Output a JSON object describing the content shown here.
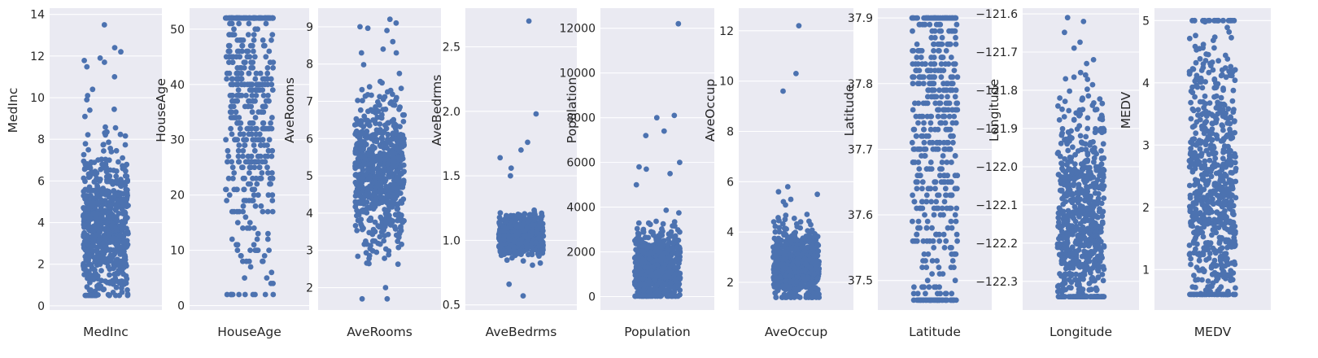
{
  "style": {
    "face_color": "#eaeaf2",
    "grid_color": "#ffffff",
    "point_color": "#4c72b0",
    "text_color": "#262626"
  },
  "chart_data": [
    {
      "type": "scatter",
      "subtype": "strip",
      "category": "MedInc",
      "xlabel": "MedInc",
      "ylabel": "MedInc",
      "ylim": [
        -0.2,
        14.3
      ],
      "yticks": [
        0,
        2,
        4,
        6,
        8,
        10,
        12,
        14
      ],
      "tick_labels": [
        "0",
        "2",
        "4",
        "6",
        "8",
        "10",
        "12",
        "14"
      ],
      "grid": true,
      "n_points": 700,
      "distribution": {
        "min": 0.5,
        "max": 13.5,
        "median": 3.7,
        "q1": 2.6,
        "q3": 5.0
      },
      "outliers": [
        13.5,
        12.4,
        12.2,
        11.9,
        11.7,
        11.0,
        10.4,
        10.1,
        9.9,
        9.4
      ]
    },
    {
      "type": "scatter",
      "subtype": "strip",
      "category": "HouseAge",
      "xlabel": "HouseAge",
      "ylabel": "HouseAge",
      "ylim": [
        -0.8,
        53.8
      ],
      "yticks": [
        0,
        10,
        20,
        30,
        40,
        50
      ],
      "tick_labels": [
        "0",
        "10",
        "20",
        "30",
        "40",
        "50"
      ],
      "grid": true,
      "n_points": 450,
      "integer_values": true,
      "distribution": {
        "min": 2,
        "max": 52,
        "median": 37,
        "q1": 25,
        "q3": 47
      },
      "outliers": [
        52,
        52,
        52,
        52,
        52,
        52,
        52,
        52,
        52,
        52,
        52,
        52
      ]
    },
    {
      "type": "scatter",
      "subtype": "strip",
      "category": "AveRooms",
      "xlabel": "AveRooms",
      "ylabel": "AveRooms",
      "ylim": [
        1.4,
        9.5
      ],
      "yticks": [
        2,
        3,
        4,
        5,
        6,
        7,
        8,
        9
      ],
      "tick_labels": [
        "2",
        "3",
        "4",
        "5",
        "6",
        "7",
        "8",
        "9"
      ],
      "grid": true,
      "n_points": 700,
      "distribution": {
        "min": 1.7,
        "max": 9.2,
        "median": 5.0,
        "q1": 4.4,
        "q3": 5.7
      },
      "outliers": [
        9.2,
        9.1,
        9.0,
        8.9,
        8.6,
        8.4,
        8.3,
        8.3,
        2.0,
        1.7
      ]
    },
    {
      "type": "scatter",
      "subtype": "strip",
      "category": "AveBedrms",
      "xlabel": "AveBedrms",
      "ylabel": "AveBedrms",
      "ylim": [
        0.46,
        2.8
      ],
      "yticks": [
        0.5,
        1.0,
        1.5,
        2.0,
        2.5
      ],
      "tick_labels": [
        "0.5",
        "1.0",
        "1.5",
        "2.0",
        "2.5"
      ],
      "grid": true,
      "n_points": 650,
      "distribution": {
        "min": 0.57,
        "max": 2.7,
        "median": 1.04,
        "q1": 0.99,
        "q3": 1.09
      },
      "outliers": [
        2.7,
        1.98,
        1.76,
        1.7,
        1.64,
        1.56,
        1.5,
        0.66,
        0.57
      ]
    },
    {
      "type": "scatter",
      "subtype": "strip",
      "category": "Population",
      "xlabel": "Population",
      "ylabel": "Population",
      "ylim": [
        -600,
        12900
      ],
      "yticks": [
        0,
        2000,
        4000,
        6000,
        8000,
        10000,
        12000
      ],
      "tick_labels": [
        "0",
        "2000",
        "4000",
        "6000",
        "8000",
        "10000",
        "12000"
      ],
      "grid": true,
      "n_points": 700,
      "distribution": {
        "min": 20,
        "max": 12200,
        "median": 1100,
        "q1": 700,
        "q3": 1700
      },
      "outliers": [
        12200,
        8100,
        8000,
        7400,
        7200,
        6000,
        5800,
        5700,
        5500,
        5000
      ]
    },
    {
      "type": "scatter",
      "subtype": "strip",
      "category": "AveOccup",
      "xlabel": "AveOccup",
      "ylabel": "AveOccup",
      "ylim": [
        0.9,
        12.9
      ],
      "yticks": [
        2,
        4,
        6,
        8,
        10,
        12
      ],
      "tick_labels": [
        "2",
        "4",
        "6",
        "8",
        "10",
        "12"
      ],
      "grid": true,
      "n_points": 700,
      "distribution": {
        "min": 1.4,
        "max": 12.2,
        "median": 2.6,
        "q1": 2.2,
        "q3": 3.1
      },
      "outliers": [
        12.2,
        10.3,
        9.6,
        5.8,
        5.6,
        5.5,
        5.3,
        4.7,
        4.5
      ]
    },
    {
      "type": "scatter",
      "subtype": "strip",
      "category": "Latitude",
      "xlabel": "Latitude",
      "ylabel": "Latitude",
      "ylim": [
        37.455,
        37.915
      ],
      "yticks": [
        37.5,
        37.6,
        37.7,
        37.8,
        37.9
      ],
      "tick_labels": [
        "37.5",
        "37.6",
        "37.7",
        "37.8",
        "37.9"
      ],
      "grid": true,
      "n_points": 500,
      "value_step": 0.01,
      "distribution": {
        "min": 37.47,
        "max": 37.9,
        "median": 37.74,
        "q1": 37.62,
        "q3": 37.83
      },
      "outliers": [
        37.47,
        37.47,
        37.48,
        37.49
      ]
    },
    {
      "type": "scatter",
      "subtype": "strip",
      "category": "Longitude",
      "xlabel": "Longitude",
      "ylabel": "Longitude",
      "ylim": [
        -122.375,
        -121.585
      ],
      "yticks": [
        -122.3,
        -122.2,
        -122.1,
        -122.0,
        -121.9,
        -121.8,
        -121.7,
        -121.6
      ],
      "tick_labels": [
        "−122.3",
        "−122.2",
        "−122.1",
        "−122.0",
        "−121.9",
        "−121.8",
        "−121.7",
        "−121.6"
      ],
      "grid": true,
      "n_points": 700,
      "distribution": {
        "min": -122.34,
        "max": -121.61,
        "median": -122.15,
        "q1": -122.24,
        "q3": -122.04
      },
      "outliers": [
        -121.61,
        -121.62,
        -121.72,
        -121.73,
        -121.76,
        -121.77,
        -122.33,
        -122.34
      ]
    },
    {
      "type": "scatter",
      "subtype": "strip",
      "category": "MEDV",
      "xlabel": "MEDV",
      "ylabel": "MEDV",
      "ylim": [
        0.35,
        5.2
      ],
      "yticks": [
        1,
        2,
        3,
        4,
        5
      ],
      "tick_labels": [
        "1",
        "2",
        "3",
        "4",
        "5"
      ],
      "grid": true,
      "n_points": 700,
      "distribution": {
        "min": 0.6,
        "max": 5.0,
        "median": 2.2,
        "q1": 1.5,
        "q3": 3.1
      },
      "outliers": [
        5.0,
        5.0,
        5.0,
        5.0,
        5.0,
        5.0,
        5.0,
        5.0,
        0.6
      ]
    }
  ]
}
